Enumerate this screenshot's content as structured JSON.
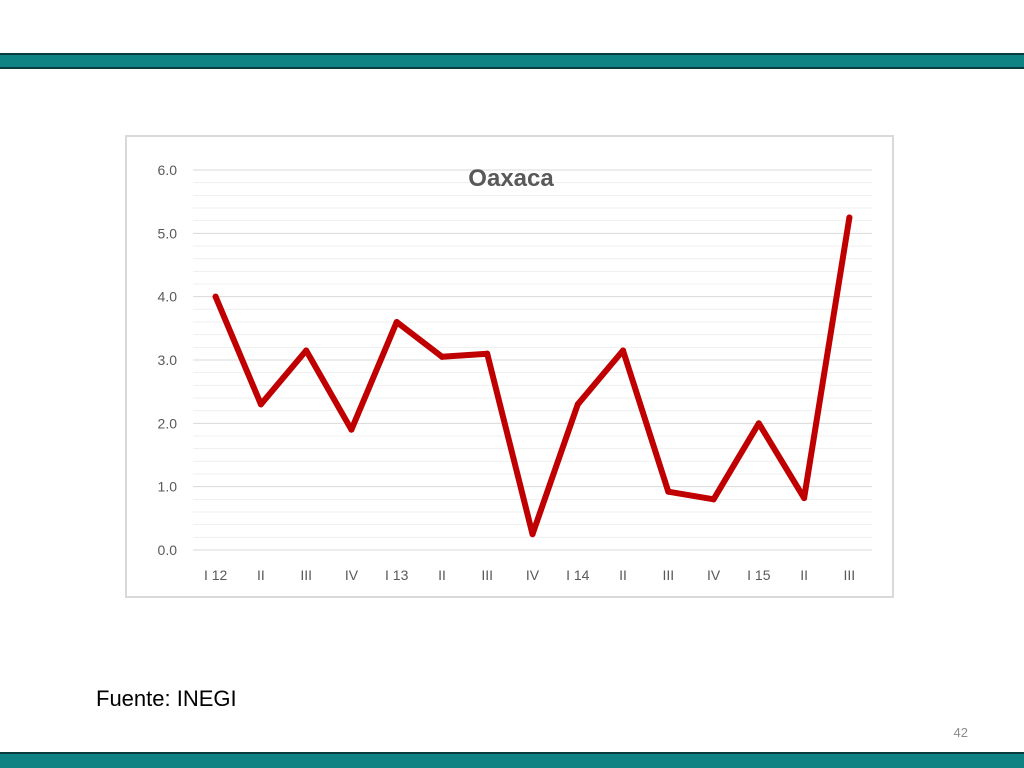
{
  "slide": {
    "source_text": "Fuente: INEGI",
    "page_number": "42",
    "bar_color": "#0f8284",
    "bar_border_color": "#0b3b3c"
  },
  "chart_data": {
    "type": "line",
    "title": "Oaxaca",
    "xlabel": "",
    "ylabel": "",
    "categories": [
      "I 12",
      "II",
      "III",
      "IV",
      "I 13",
      "II",
      "III",
      "IV",
      "I 14",
      "II",
      "III",
      "IV",
      "I 15",
      "II",
      "III"
    ],
    "series": [
      {
        "values": [
          4.0,
          2.3,
          3.15,
          1.9,
          3.6,
          3.05,
          3.1,
          0.25,
          2.3,
          3.15,
          0.92,
          0.8,
          2.0,
          0.82,
          5.25
        ],
        "color": "#c00000"
      }
    ],
    "ylim": [
      0,
      6
    ],
    "y_ticks": [
      "0.0",
      "1.0",
      "2.0",
      "3.0",
      "4.0",
      "5.0",
      "6.0"
    ],
    "grid": true,
    "legend": "none"
  }
}
